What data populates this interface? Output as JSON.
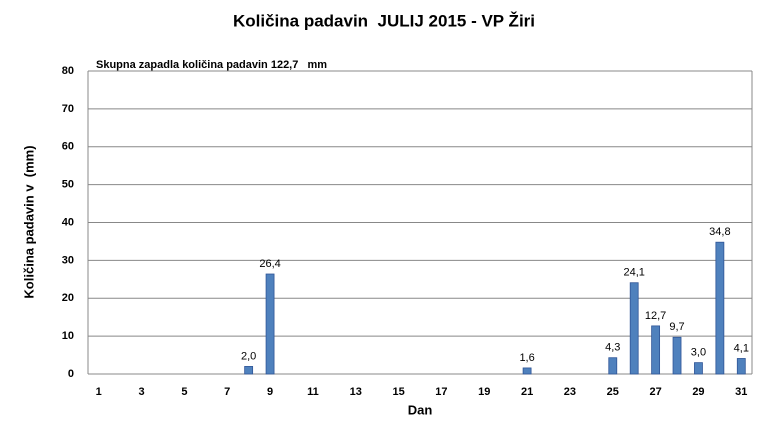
{
  "chart_data": {
    "type": "bar",
    "title": "Količina padavin  JULIJ 2015 - VP Žiri",
    "annotation": "Skupna zapadla količina padavin 122,7   mm",
    "x_label": "Dan",
    "y_label": "Količina padavin v  (mm)",
    "categories": [
      "1",
      null,
      "3",
      null,
      "5",
      null,
      "7",
      null,
      "9",
      null,
      "11",
      null,
      "13",
      null,
      "15",
      null,
      "17",
      null,
      "19",
      null,
      "21",
      null,
      "23",
      null,
      "25",
      null,
      "27",
      null,
      "29",
      null,
      "31"
    ],
    "values": [
      null,
      null,
      null,
      null,
      null,
      null,
      null,
      2.0,
      26.4,
      null,
      null,
      null,
      null,
      null,
      null,
      null,
      null,
      null,
      null,
      null,
      1.6,
      null,
      null,
      null,
      4.3,
      24.1,
      12.7,
      9.7,
      3.0,
      34.8,
      4.1
    ],
    "value_labels": [
      null,
      null,
      null,
      null,
      null,
      null,
      null,
      "2,0",
      "26,4",
      null,
      null,
      null,
      null,
      null,
      null,
      null,
      null,
      null,
      null,
      null,
      "1,6",
      null,
      null,
      null,
      "4,3",
      "24,1",
      "12,7",
      "9,7",
      "3,0",
      "34,8",
      "4,1"
    ],
    "color": "#4f81bd",
    "ylim": [
      0,
      80
    ],
    "yticks": [
      0,
      10,
      20,
      30,
      40,
      50,
      60,
      70,
      80
    ],
    "grid": true
  }
}
